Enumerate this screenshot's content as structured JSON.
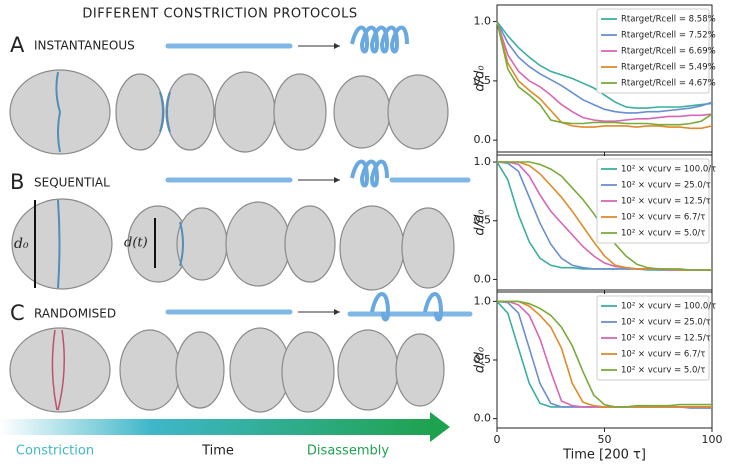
{
  "figure": {
    "title": "DIFFERENT CONSTRICTION PROTOCOLS",
    "panels": [
      {
        "letter": "A",
        "name": "INSTANTANEOUS"
      },
      {
        "letter": "B",
        "name": "SEQUENTIAL"
      },
      {
        "letter": "C",
        "name": "RANDOMISED"
      }
    ],
    "annotations": {
      "d0": "d₀",
      "dt": "d(t)"
    },
    "timeline": [
      "Constriction",
      "Time",
      "Disassembly"
    ]
  },
  "chart_data": [
    {
      "type": "line",
      "ylabel": "d/d₀",
      "legend": "upper right",
      "x": [
        0,
        5,
        10,
        15,
        20,
        25,
        30,
        35,
        40,
        45,
        50,
        55,
        60,
        65,
        70,
        75,
        80,
        85,
        90,
        95,
        100
      ],
      "xlim": [
        0,
        100
      ],
      "xticks": [
        0,
        50,
        100
      ],
      "ylim": [
        -0.1,
        1.14
      ],
      "yticks": [
        {
          "value": 0,
          "label": "0.0"
        },
        {
          "value": 0.5,
          "label": "0.5"
        },
        {
          "value": 1,
          "label": "1.0"
        }
      ],
      "series": [
        {
          "name": "Rtarget/Rcell = 8.58%",
          "color": "#3aafa0",
          "values": [
            1.0,
            0.88,
            0.78,
            0.7,
            0.63,
            0.58,
            0.55,
            0.52,
            0.48,
            0.44,
            0.38,
            0.32,
            0.28,
            0.27,
            0.27,
            0.28,
            0.28,
            0.28,
            0.29,
            0.3,
            0.31
          ]
        },
        {
          "name": "Rtarget/Rcell = 7.52%",
          "color": "#6a8fd0",
          "values": [
            1.0,
            0.82,
            0.7,
            0.62,
            0.56,
            0.51,
            0.46,
            0.4,
            0.34,
            0.3,
            0.26,
            0.24,
            0.23,
            0.23,
            0.24,
            0.24,
            0.25,
            0.26,
            0.27,
            0.29,
            0.32
          ]
        },
        {
          "name": "Rtarget/Rcell = 6.69%",
          "color": "#d966b5",
          "values": [
            1.0,
            0.72,
            0.58,
            0.5,
            0.45,
            0.38,
            0.3,
            0.24,
            0.19,
            0.17,
            0.16,
            0.16,
            0.17,
            0.18,
            0.18,
            0.19,
            0.2,
            0.2,
            0.21,
            0.21,
            0.22
          ]
        },
        {
          "name": "Rtarget/Rcell = 5.49%",
          "color": "#e08a2a",
          "values": [
            1.0,
            0.65,
            0.5,
            0.42,
            0.35,
            0.25,
            0.15,
            0.12,
            0.11,
            0.11,
            0.12,
            0.12,
            0.12,
            0.11,
            0.12,
            0.12,
            0.11,
            0.11,
            0.1,
            0.1,
            0.12
          ]
        },
        {
          "name": "Rtarget/Rcell = 4.67%",
          "color": "#7aab3a",
          "values": [
            1.0,
            0.6,
            0.45,
            0.38,
            0.3,
            0.17,
            0.15,
            0.14,
            0.14,
            0.15,
            0.15,
            0.15,
            0.14,
            0.14,
            0.14,
            0.13,
            0.13,
            0.13,
            0.14,
            0.16,
            0.22
          ]
        }
      ]
    },
    {
      "type": "line",
      "ylabel": "d/d₀",
      "legend": "upper right",
      "x": [
        0,
        5,
        10,
        15,
        20,
        25,
        30,
        35,
        40,
        45,
        50,
        55,
        60,
        65,
        70,
        75,
        80,
        85,
        90,
        95,
        100
      ],
      "xlim": [
        0,
        100
      ],
      "xticks": [
        0,
        50,
        100
      ],
      "ylim": [
        -0.09,
        1.06
      ],
      "yticks": [
        {
          "value": 0,
          "label": "0.0"
        },
        {
          "value": 0.5,
          "label": "0.5"
        },
        {
          "value": 1,
          "label": "1.0"
        }
      ],
      "series": [
        {
          "name": "10² × vcurv = 100.0/τ",
          "color": "#3aafa0",
          "values": [
            1.0,
            0.85,
            0.55,
            0.32,
            0.18,
            0.12,
            0.1,
            0.1,
            0.09,
            0.09,
            0.09,
            0.09,
            0.09,
            0.09,
            0.08,
            0.08,
            0.08,
            0.08,
            0.08,
            0.08,
            0.08
          ]
        },
        {
          "name": "10² × vcurv = 25.0/τ",
          "color": "#6a8fd0",
          "values": [
            1.0,
            0.99,
            0.92,
            0.7,
            0.48,
            0.3,
            0.18,
            0.12,
            0.1,
            0.09,
            0.09,
            0.09,
            0.09,
            0.09,
            0.09,
            0.08,
            0.08,
            0.08,
            0.08,
            0.08,
            0.08
          ]
        },
        {
          "name": "10² × vcurv = 12.5/τ",
          "color": "#d966b5",
          "values": [
            1.0,
            1.0,
            0.98,
            0.88,
            0.72,
            0.58,
            0.48,
            0.38,
            0.28,
            0.2,
            0.14,
            0.11,
            0.1,
            0.09,
            0.09,
            0.09,
            0.08,
            0.08,
            0.08,
            0.08,
            0.08
          ]
        },
        {
          "name": "10² × vcurv = 6.7/τ",
          "color": "#e08a2a",
          "values": [
            1.0,
            1.0,
            1.0,
            0.97,
            0.9,
            0.8,
            0.7,
            0.58,
            0.45,
            0.32,
            0.2,
            0.12,
            0.1,
            0.09,
            0.09,
            0.09,
            0.09,
            0.08,
            0.08,
            0.08,
            0.08
          ]
        },
        {
          "name": "10² × vcurv = 5.0/τ",
          "color": "#7aab3a",
          "values": [
            1.0,
            1.0,
            1.0,
            1.0,
            0.98,
            0.94,
            0.88,
            0.78,
            0.68,
            0.56,
            0.42,
            0.3,
            0.2,
            0.13,
            0.1,
            0.09,
            0.09,
            0.09,
            0.08,
            0.08,
            0.08
          ]
        }
      ]
    },
    {
      "type": "line",
      "ylabel": "d/d₀",
      "xlabel": "Time [200 τ]",
      "legend": "upper right",
      "x": [
        0,
        5,
        10,
        15,
        20,
        25,
        30,
        35,
        40,
        45,
        50,
        55,
        60,
        65,
        70,
        75,
        80,
        85,
        90,
        95,
        100
      ],
      "xlim": [
        0,
        100
      ],
      "xticks": [
        0,
        50,
        100
      ],
      "ylim": [
        -0.08,
        1.08
      ],
      "yticks": [
        {
          "value": 0,
          "label": "0.0"
        },
        {
          "value": 0.5,
          "label": "0.5"
        },
        {
          "value": 1,
          "label": "1.0"
        }
      ],
      "series": [
        {
          "name": "10² × vcurv = 100.0/τ",
          "color": "#3aafa0",
          "values": [
            1.0,
            0.9,
            0.6,
            0.3,
            0.13,
            0.1,
            0.1,
            0.1,
            0.1,
            0.1,
            0.1,
            0.1,
            0.1,
            0.1,
            0.1,
            0.1,
            0.1,
            0.1,
            0.1,
            0.1,
            0.1
          ]
        },
        {
          "name": "10² × vcurv = 25.0/τ",
          "color": "#6a8fd0",
          "values": [
            1.0,
            0.99,
            0.9,
            0.6,
            0.3,
            0.13,
            0.1,
            0.1,
            0.1,
            0.1,
            0.1,
            0.1,
            0.1,
            0.1,
            0.1,
            0.1,
            0.1,
            0.1,
            0.09,
            0.09,
            0.09
          ]
        },
        {
          "name": "10² × vcurv = 12.5/τ",
          "color": "#d966b5",
          "values": [
            1.0,
            1.0,
            0.97,
            0.88,
            0.68,
            0.4,
            0.15,
            0.11,
            0.1,
            0.1,
            0.1,
            0.1,
            0.1,
            0.1,
            0.1,
            0.1,
            0.1,
            0.1,
            0.1,
            0.1,
            0.1
          ]
        },
        {
          "name": "10² × vcurv = 6.7/τ",
          "color": "#e08a2a",
          "values": [
            1.0,
            1.0,
            1.0,
            0.96,
            0.88,
            0.78,
            0.6,
            0.3,
            0.14,
            0.11,
            0.1,
            0.1,
            0.1,
            0.1,
            0.1,
            0.1,
            0.1,
            0.1,
            0.1,
            0.1,
            0.1
          ]
        },
        {
          "name": "10² × vcurv = 5.0/τ",
          "color": "#7aab3a",
          "values": [
            1.0,
            1.0,
            1.0,
            0.98,
            0.94,
            0.88,
            0.78,
            0.62,
            0.4,
            0.2,
            0.12,
            0.1,
            0.1,
            0.11,
            0.11,
            0.11,
            0.11,
            0.12,
            0.12,
            0.12,
            0.12
          ]
        }
      ]
    }
  ]
}
